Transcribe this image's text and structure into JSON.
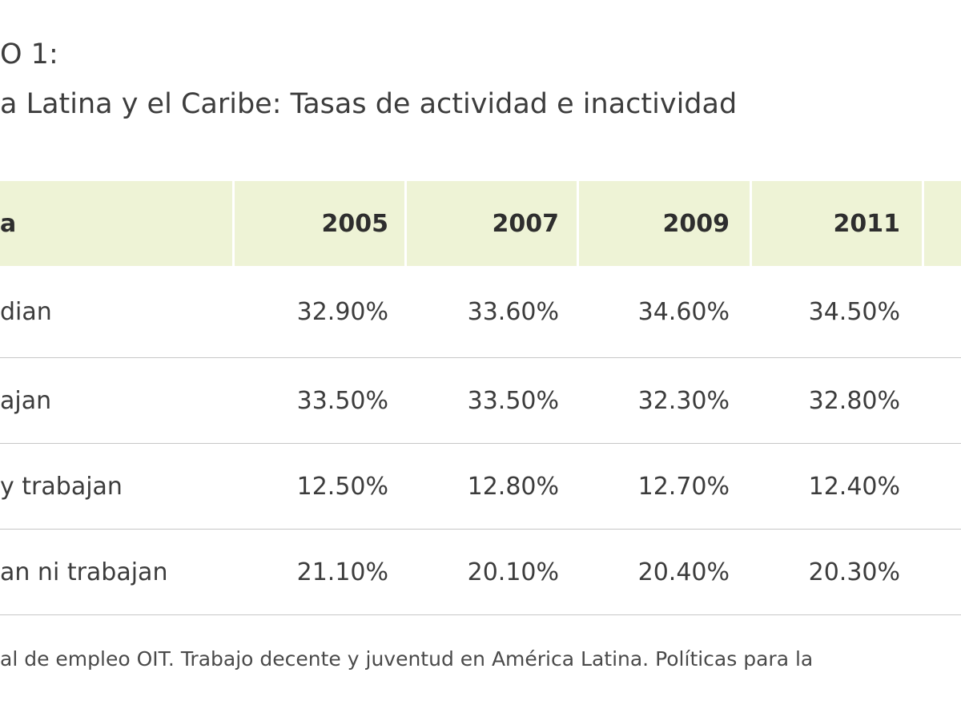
{
  "heading": "O 1:",
  "subheading": "a Latina y el Caribe: Tasas de actividad e inactividad",
  "table": {
    "header": [
      "a",
      "2005",
      "2007",
      "2009",
      "2011",
      ""
    ],
    "rows": [
      [
        "dian",
        "32.90%",
        "33.60%",
        "34.60%",
        "34.50%",
        ""
      ],
      [
        "ajan",
        "33.50%",
        "33.50%",
        "32.30%",
        "32.80%",
        ""
      ],
      [
        "y trabajan",
        "12.50%",
        "12.80%",
        "12.70%",
        "12.40%",
        ""
      ],
      [
        "an ni trabajan",
        "21.10%",
        "20.10%",
        "20.40%",
        "20.30%",
        ""
      ]
    ]
  },
  "source": "al de empleo OIT. Trabajo decente y juventud en América Latina. Políticas para la",
  "colors": {
    "header_bg": "#eef3d6",
    "divider": "#c7c7c7",
    "text": "#3c3c3c"
  }
}
